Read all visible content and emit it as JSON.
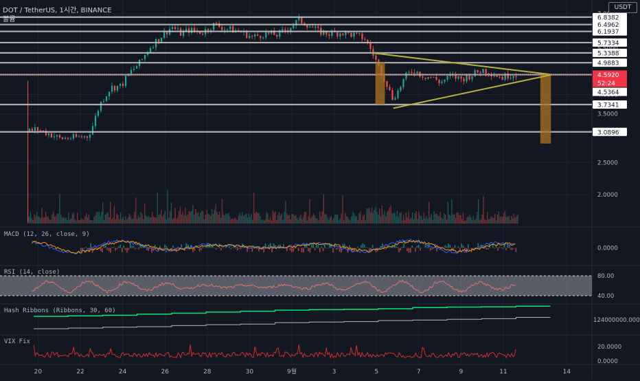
{
  "header": {
    "symbol_line": "DOT / TetherUS, 1시간, BINANCE",
    "volume_label": "볼륨",
    "currency_button": "USDT"
  },
  "colors": {
    "background": "#131722",
    "bull": "#26a69a",
    "bear": "#ef5350",
    "hline": "#c9c9c9",
    "triangle": "#b5b13b",
    "box": "#b07422",
    "price_tag": "#f23645",
    "macd": "#2962ff",
    "signal": "#ff9800",
    "rsi": "#e57373",
    "hash_fast": "#00e676",
    "hash_slow": "#b2b5be",
    "vix": "#d32f2f"
  },
  "chart_data": [
    {
      "type": "candlestick",
      "title": "DOT / TetherUS, 1시간, BINANCE",
      "y_scale": "log",
      "ylim": [
        1.6,
        7.0
      ],
      "y_ticks": [
        {
          "value": 7.0,
          "label": "7.0000"
        },
        {
          "value": 5.5,
          "label": "5.5000"
        },
        {
          "value": 4.0,
          "label": "4.0000"
        },
        {
          "value": 3.5,
          "label": "3.5000"
        },
        {
          "value": 2.5,
          "label": "2.5000"
        },
        {
          "value": 2.0,
          "label": "2.0000"
        }
      ],
      "x_ticks": [
        "20",
        "22",
        "24",
        "26",
        "28",
        "30",
        "9월",
        "3",
        "5",
        "7",
        "9",
        "11",
        "14"
      ],
      "xlim_days": [
        0,
        25
      ],
      "x_tick_days": [
        0.5,
        2.5,
        4.5,
        6.5,
        8.5,
        10.5,
        12.5,
        14.5,
        16.5,
        18.5,
        20.5,
        22.5,
        25.5
      ],
      "horizontal_levels": [
        {
          "value": 6.8382,
          "label": "6.8382"
        },
        {
          "value": 6.4962,
          "label": "6.4962"
        },
        {
          "value": 6.1937,
          "label": "6.1937"
        },
        {
          "value": 5.7334,
          "label": "5.7334"
        },
        {
          "value": 5.3388,
          "label": "5.3388"
        },
        {
          "value": 4.9883,
          "label": "4.9883"
        },
        {
          "value": 4.592,
          "label": "4.5920"
        },
        {
          "value": 3.7341,
          "label": "3.7341"
        },
        {
          "value": 3.0896,
          "label": "3.0896"
        }
      ],
      "price_path": [
        [
          0,
          3.1
        ],
        [
          0.4,
          3.15
        ],
        [
          1.0,
          3.05
        ],
        [
          1.5,
          2.95
        ],
        [
          2.2,
          2.97
        ],
        [
          2.8,
          3.0
        ],
        [
          3.0,
          3.15
        ],
        [
          3.4,
          3.75
        ],
        [
          3.9,
          4.2
        ],
        [
          4.4,
          4.25
        ],
        [
          4.8,
          4.65
        ],
        [
          5.3,
          5.0
        ],
        [
          5.8,
          5.6
        ],
        [
          6.3,
          6.0
        ],
        [
          6.8,
          6.4
        ],
        [
          7.2,
          6.1
        ],
        [
          7.6,
          6.25
        ],
        [
          8.2,
          6.15
        ],
        [
          8.8,
          6.5
        ],
        [
          9.4,
          6.3
        ],
        [
          10.0,
          6.2
        ],
        [
          10.6,
          5.95
        ],
        [
          11.2,
          6.1
        ],
        [
          11.8,
          6.05
        ],
        [
          12.4,
          6.4
        ],
        [
          12.8,
          6.7
        ],
        [
          13.2,
          6.5
        ],
        [
          13.7,
          6.2
        ],
        [
          14.2,
          6.1
        ],
        [
          14.8,
          6.15
        ],
        [
          15.4,
          6.05
        ],
        [
          15.9,
          5.9
        ],
        [
          16.3,
          5.3
        ],
        [
          16.6,
          4.8
        ],
        [
          16.9,
          4.4
        ],
        [
          17.2,
          3.9
        ],
        [
          17.5,
          4.1
        ],
        [
          17.8,
          4.5
        ],
        [
          18.2,
          4.75
        ],
        [
          18.7,
          4.55
        ],
        [
          19.1,
          4.5
        ],
        [
          19.5,
          4.35
        ],
        [
          20.0,
          4.55
        ],
        [
          20.5,
          4.45
        ],
        [
          21.0,
          4.6
        ],
        [
          21.5,
          4.75
        ],
        [
          22.0,
          4.62
        ],
        [
          22.4,
          4.5
        ],
        [
          22.8,
          4.6
        ],
        [
          23.1,
          4.59
        ]
      ],
      "triangle": {
        "apex": [
          24.8,
          4.592
        ],
        "upper_start": [
          16.3,
          5.34
        ],
        "lower_start": [
          17.3,
          3.64
        ]
      },
      "boxes": [
        {
          "x0": 16.45,
          "x1": 16.9,
          "y0": 3.73,
          "y1": 5.0
        },
        {
          "x0": 24.25,
          "x1": 24.75,
          "y0": 2.85,
          "y1": 4.59
        }
      ],
      "last_price": {
        "value": 4.592,
        "label": "4.5920",
        "countdown": "52:24"
      },
      "secondary_label": {
        "value": 4.5364,
        "label": "4.5364"
      }
    },
    {
      "type": "bar",
      "series": [
        {
          "name": "볼륨",
          "values": []
        }
      ]
    },
    {
      "type": "line",
      "title": "MACD (12, 26, close, 9)",
      "y_ticks": [
        {
          "value": 0,
          "label": "0.0000"
        }
      ]
    },
    {
      "type": "line",
      "title": "RSI (14, close)",
      "y_ticks": [
        {
          "value": 80,
          "label": "80.00"
        },
        {
          "value": 40,
          "label": "40.00"
        }
      ],
      "band": [
        40,
        80
      ]
    },
    {
      "type": "line",
      "title": "Hash Ribbons (Ribbons, 30, 60)",
      "y_ticks": [
        {
          "value": 124000000,
          "label": "124000000.0000"
        }
      ]
    },
    {
      "type": "line",
      "title": "VIX Fix",
      "y_ticks": [
        {
          "value": 20,
          "label": "20.0000"
        },
        {
          "value": 0,
          "label": "0.0000"
        }
      ]
    }
  ]
}
